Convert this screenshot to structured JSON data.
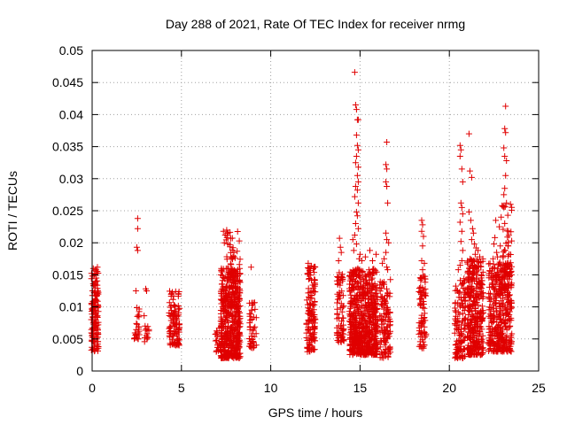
{
  "chart_data": {
    "type": "scatter",
    "title": "Day 288 of 2021, Rate Of TEC Index for receiver nrmg",
    "xlabel": "GPS time / hours",
    "ylabel": "ROTI / TECUs",
    "xlim": [
      0,
      25
    ],
    "ylim": [
      0,
      0.05
    ],
    "xticks": [
      0,
      5,
      10,
      15,
      20,
      25
    ],
    "xtick_labels": [
      "0",
      "5",
      "10",
      "15",
      "20",
      "25"
    ],
    "yticks": [
      0,
      0.005,
      0.01,
      0.015,
      0.02,
      0.025,
      0.03,
      0.035,
      0.04,
      0.045,
      0.05
    ],
    "ytick_labels": [
      "0",
      "0.005",
      "0.01",
      "0.015",
      "0.02",
      "0.025",
      "0.03",
      "0.035",
      "0.04",
      "0.045",
      "0.05"
    ],
    "grid": true,
    "marker": "+",
    "color": "#e00000",
    "clusters": [
      {
        "x_range": [
          -0.05,
          0.35
        ],
        "y_range": [
          0.003,
          0.016
        ],
        "n": 140
      },
      {
        "x_range": [
          2.35,
          2.65
        ],
        "y_range": [
          0.005,
          0.01
        ],
        "n": 25
      },
      {
        "x_range": [
          2.9,
          3.2
        ],
        "y_range": [
          0.0045,
          0.009
        ],
        "n": 14
      },
      {
        "x_range": [
          4.3,
          4.9
        ],
        "y_range": [
          0.004,
          0.0125
        ],
        "n": 110
      },
      {
        "x_range": [
          6.9,
          7.3
        ],
        "y_range": [
          0.003,
          0.008
        ],
        "n": 25
      },
      {
        "x_range": [
          7.2,
          8.3
        ],
        "y_range": [
          0.002,
          0.016
        ],
        "n": 520
      },
      {
        "x_range": [
          7.5,
          8.3
        ],
        "y_range": [
          0.015,
          0.022
        ],
        "n": 40
      },
      {
        "x_range": [
          8.8,
          9.2
        ],
        "y_range": [
          0.0035,
          0.011
        ],
        "n": 45
      },
      {
        "x_range": [
          12.0,
          12.5
        ],
        "y_range": [
          0.003,
          0.0165
        ],
        "n": 130
      },
      {
        "x_range": [
          13.7,
          14.1
        ],
        "y_range": [
          0.0045,
          0.0155
        ],
        "n": 70
      },
      {
        "x_range": [
          14.4,
          16.0
        ],
        "y_range": [
          0.0025,
          0.016
        ],
        "n": 650
      },
      {
        "x_range": [
          16.1,
          16.7
        ],
        "y_range": [
          0.002,
          0.0145
        ],
        "n": 120
      },
      {
        "x_range": [
          18.3,
          18.7
        ],
        "y_range": [
          0.0035,
          0.015
        ],
        "n": 80
      },
      {
        "x_range": [
          20.3,
          20.9
        ],
        "y_range": [
          0.002,
          0.0145
        ],
        "n": 120
      },
      {
        "x_range": [
          21.0,
          21.9
        ],
        "y_range": [
          0.0025,
          0.0175
        ],
        "n": 330
      },
      {
        "x_range": [
          22.2,
          23.5
        ],
        "y_range": [
          0.003,
          0.017
        ],
        "n": 400
      },
      {
        "x_range": [
          23.0,
          23.5
        ],
        "y_range": [
          0.015,
          0.027
        ],
        "n": 40
      }
    ],
    "points": [
      [
        0.15,
        0.0135
      ],
      [
        0.25,
        0.0155
      ],
      [
        0.3,
        0.0162
      ],
      [
        0.1,
        0.0148
      ],
      [
        2.55,
        0.0238
      ],
      [
        2.55,
        0.0222
      ],
      [
        2.5,
        0.0193
      ],
      [
        2.55,
        0.0188
      ],
      [
        2.45,
        0.0125
      ],
      [
        3.0,
        0.0128
      ],
      [
        3.05,
        0.0125
      ],
      [
        7.35,
        0.0218
      ],
      [
        7.45,
        0.0212
      ],
      [
        7.55,
        0.0208
      ],
      [
        7.4,
        0.02
      ],
      [
        8.9,
        0.0162
      ],
      [
        12.1,
        0.0168
      ],
      [
        12.2,
        0.0162
      ],
      [
        13.85,
        0.0207
      ],
      [
        13.9,
        0.0193
      ],
      [
        13.95,
        0.0185
      ],
      [
        13.8,
        0.0172
      ],
      [
        14.7,
        0.0466
      ],
      [
        14.75,
        0.0415
      ],
      [
        14.8,
        0.0408
      ],
      [
        14.85,
        0.0392
      ],
      [
        14.9,
        0.0392
      ],
      [
        14.8,
        0.0368
      ],
      [
        14.85,
        0.0352
      ],
      [
        14.9,
        0.0345
      ],
      [
        14.8,
        0.0335
      ],
      [
        14.75,
        0.0325
      ],
      [
        14.9,
        0.0318
      ],
      [
        14.85,
        0.0305
      ],
      [
        14.9,
        0.0295
      ],
      [
        14.75,
        0.0288
      ],
      [
        14.85,
        0.0282
      ],
      [
        14.7,
        0.0272
      ],
      [
        14.9,
        0.0262
      ],
      [
        14.8,
        0.0248
      ],
      [
        14.85,
        0.0242
      ],
      [
        14.75,
        0.023
      ],
      [
        14.9,
        0.0222
      ],
      [
        14.7,
        0.0212
      ],
      [
        14.6,
        0.0205
      ],
      [
        14.8,
        0.0198
      ],
      [
        14.65,
        0.0188
      ],
      [
        15.0,
        0.0182
      ],
      [
        14.95,
        0.0175
      ],
      [
        15.1,
        0.0172
      ],
      [
        15.3,
        0.0178
      ],
      [
        15.55,
        0.0188
      ],
      [
        15.9,
        0.0182
      ],
      [
        15.7,
        0.0172
      ],
      [
        16.5,
        0.0357
      ],
      [
        16.45,
        0.0322
      ],
      [
        16.5,
        0.0315
      ],
      [
        16.45,
        0.0295
      ],
      [
        16.5,
        0.0288
      ],
      [
        16.55,
        0.0262
      ],
      [
        16.45,
        0.0215
      ],
      [
        16.5,
        0.0205
      ],
      [
        16.6,
        0.02
      ],
      [
        16.45,
        0.0185
      ],
      [
        16.35,
        0.0175
      ],
      [
        16.25,
        0.0168
      ],
      [
        16.5,
        0.0162
      ],
      [
        16.55,
        0.0158
      ],
      [
        18.45,
        0.0235
      ],
      [
        18.5,
        0.0228
      ],
      [
        18.45,
        0.0218
      ],
      [
        18.55,
        0.021
      ],
      [
        18.5,
        0.0195
      ],
      [
        18.45,
        0.0172
      ],
      [
        18.6,
        0.0168
      ],
      [
        18.5,
        0.0158
      ],
      [
        20.6,
        0.0352
      ],
      [
        20.65,
        0.0345
      ],
      [
        20.6,
        0.0335
      ],
      [
        20.7,
        0.0315
      ],
      [
        20.75,
        0.0295
      ],
      [
        20.65,
        0.0262
      ],
      [
        20.7,
        0.0255
      ],
      [
        20.75,
        0.0245
      ],
      [
        20.6,
        0.0232
      ],
      [
        20.7,
        0.0218
      ],
      [
        20.65,
        0.0202
      ],
      [
        20.75,
        0.0188
      ],
      [
        20.7,
        0.0172
      ],
      [
        20.6,
        0.0165
      ],
      [
        20.5,
        0.0158
      ],
      [
        21.1,
        0.037
      ],
      [
        21.15,
        0.0312
      ],
      [
        21.25,
        0.0302
      ],
      [
        21.1,
        0.0248
      ],
      [
        21.2,
        0.0235
      ],
      [
        21.3,
        0.0222
      ],
      [
        21.35,
        0.0215
      ],
      [
        21.25,
        0.0205
      ],
      [
        21.4,
        0.0198
      ],
      [
        21.5,
        0.0192
      ],
      [
        21.6,
        0.0188
      ],
      [
        21.45,
        0.0182
      ],
      [
        21.7,
        0.0178
      ],
      [
        23.15,
        0.0413
      ],
      [
        23.1,
        0.0378
      ],
      [
        23.15,
        0.0372
      ],
      [
        23.05,
        0.0348
      ],
      [
        23.1,
        0.0335
      ],
      [
        23.2,
        0.0328
      ],
      [
        23.15,
        0.0305
      ],
      [
        23.1,
        0.0285
      ],
      [
        23.05,
        0.0275
      ],
      [
        23.2,
        0.0262
      ],
      [
        22.95,
        0.0258
      ],
      [
        22.9,
        0.024
      ],
      [
        22.6,
        0.0235
      ],
      [
        22.8,
        0.0225
      ],
      [
        22.55,
        0.0208
      ],
      [
        22.5,
        0.0198
      ],
      [
        22.65,
        0.0185
      ],
      [
        22.7,
        0.0178
      ],
      [
        22.85,
        0.0195
      ],
      [
        23.3,
        0.0195
      ],
      [
        23.35,
        0.0182
      ],
      [
        22.45,
        0.0175
      ]
    ]
  }
}
